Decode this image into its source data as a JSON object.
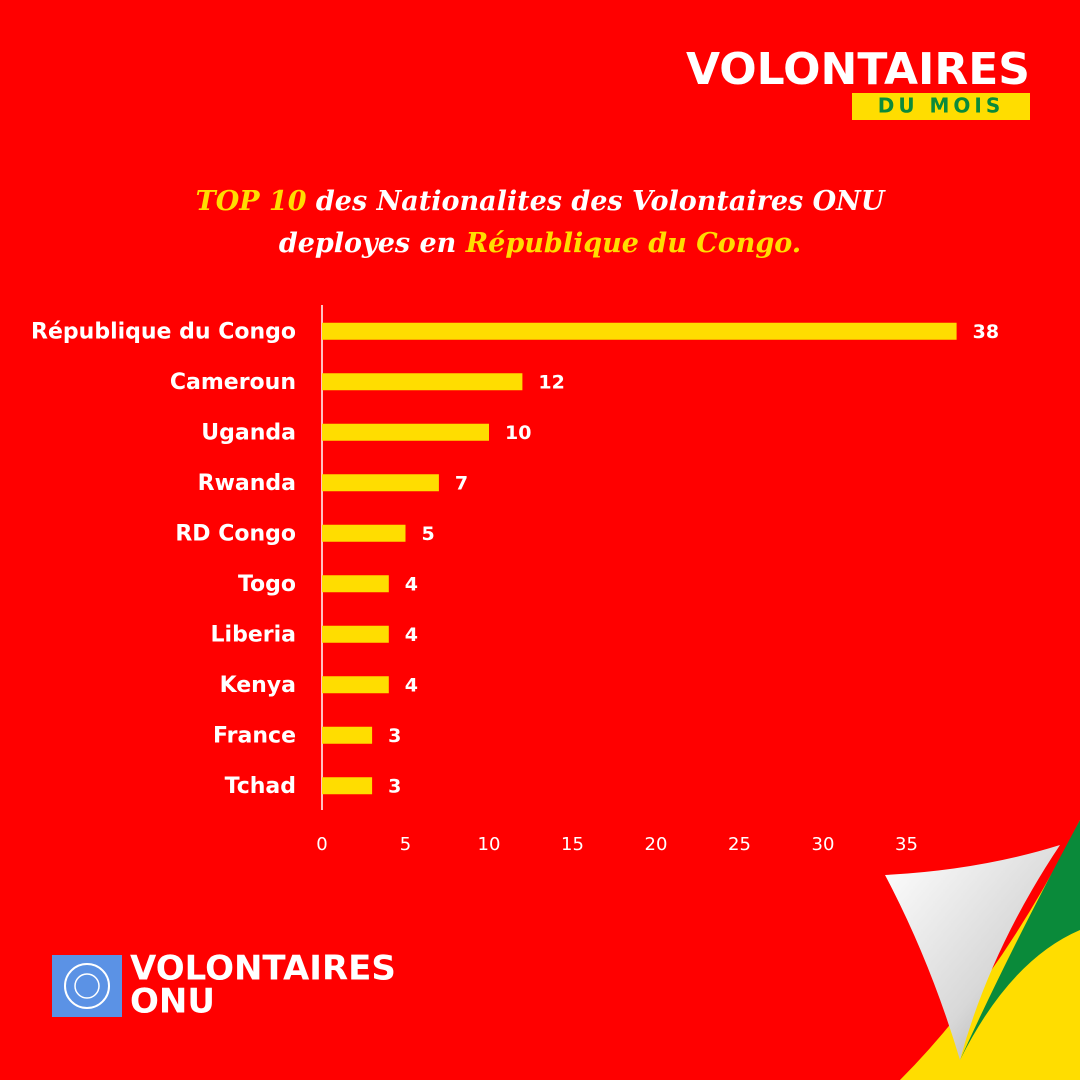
{
  "header": {
    "brand": "VOLONTAIRES",
    "brand_sub": "DU MOIS"
  },
  "chart_data": {
    "type": "barh",
    "title": [
      "TOP 10",
      "des Nationalites des Volontaires ONU",
      "deployes en",
      "République du Congo."
    ],
    "categories": [
      "République du Congo",
      "Cameroun",
      "Uganda",
      "Rwanda",
      "RD Congo",
      "Togo",
      "Liberia",
      "Kenya",
      "France",
      "Tchad"
    ],
    "values": [
      38,
      12,
      10,
      7,
      5,
      4,
      4,
      4,
      3,
      3
    ],
    "color": "#ffdd00",
    "xlim": [
      0,
      40
    ],
    "xticks": [
      0,
      5,
      10,
      15,
      20,
      25,
      30,
      35
    ],
    "grid": false
  },
  "footer": {
    "logo_line1": "VOLONTAIRES",
    "logo_line2": "ONU"
  }
}
